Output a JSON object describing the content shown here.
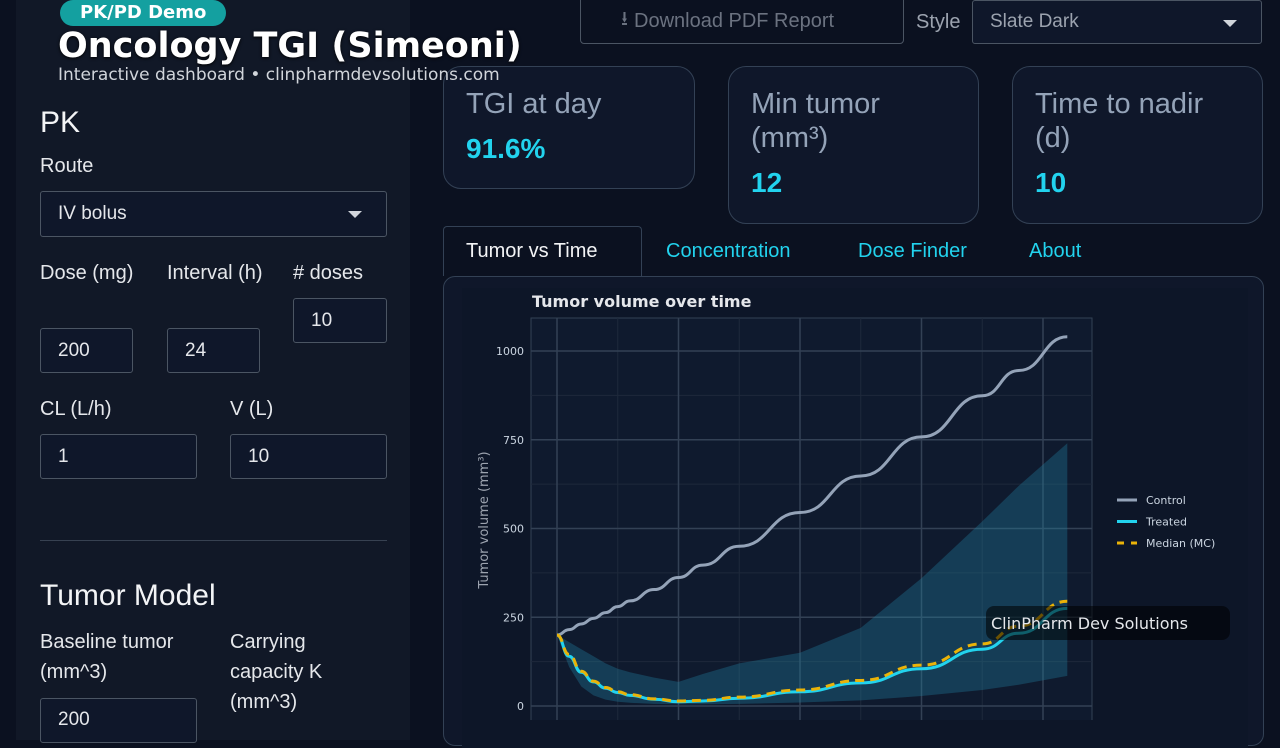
{
  "header": {
    "badge": "PK/PD Demo",
    "title": "Oncology TGI (Simeoni)",
    "subtitle": "Interactive dashboard • clinpharmdevsolutions.com"
  },
  "sidebar": {
    "style_label": "Style",
    "style_value": "Slate Dark",
    "pk_heading": "PK",
    "route_label": "Route",
    "route_value": "IV bolus",
    "dose_label": "Dose (mg)",
    "dose_value": "200",
    "interval_label": "Interval (h)",
    "interval_value": "24",
    "ndoses_label": "# doses",
    "ndoses_value": "10",
    "cl_label": "CL (L/h)",
    "cl_value": "1",
    "v_label": "V (L)",
    "v_value": "10",
    "tumor_heading": "Tumor Model",
    "baseline_label": "Baseline tumor (mm^3)",
    "baseline_value": "200",
    "k_label": "Carrying capacity K (mm^3)"
  },
  "download_label": "Download PDF Report",
  "metrics": [
    {
      "title": "TGI at day",
      "value": "91.6%"
    },
    {
      "title": "Min tumor (mm³)",
      "value": "12"
    },
    {
      "title": "Time to nadir (d)",
      "value": "10"
    }
  ],
  "tabs": [
    "Tumor vs Time",
    "Concentration",
    "Dose Finder",
    "About"
  ],
  "watermark": "ClinPharm Dev Solutions",
  "chart_data": {
    "type": "line",
    "title": "Tumor volume over time",
    "xlabel": "",
    "ylabel": "Tumor volume (mm³)",
    "xlim": [
      -2,
      44
    ],
    "ylim": [
      0,
      1090
    ],
    "yticks": [
      0,
      250,
      500,
      750,
      1000
    ],
    "xgrid": [
      0,
      10,
      20,
      30,
      40
    ],
    "legend_position": "right",
    "x": [
      0,
      1,
      2,
      3,
      4,
      5,
      6,
      8,
      10,
      12,
      15,
      20,
      25,
      30,
      35,
      38,
      42
    ],
    "series": [
      {
        "name": "Control",
        "color": "#94a3b8",
        "values": [
          200,
          215,
          231,
          247,
          263,
          280,
          296,
          328,
          362,
          397,
          450,
          545,
          648,
          758,
          874,
          945,
          1040
        ]
      },
      {
        "name": "Treated",
        "color": "#22d3ee",
        "values": [
          200,
          140,
          95,
          68,
          50,
          38,
          30,
          19,
          12,
          14,
          22,
          40,
          65,
          105,
          160,
          205,
          275
        ]
      },
      {
        "name": "Median (MC)",
        "color": "#eab308",
        "dashed": true,
        "values": [
          200,
          145,
          98,
          70,
          52,
          40,
          32,
          20,
          14,
          16,
          25,
          45,
          72,
          115,
          175,
          225,
          295
        ]
      }
    ],
    "band": {
      "upper": [
        200,
        180,
        160,
        140,
        120,
        105,
        95,
        80,
        68,
        90,
        120,
        150,
        220,
        360,
        520,
        620,
        740
      ],
      "lower": [
        200,
        110,
        55,
        30,
        18,
        12,
        9,
        6,
        5,
        5,
        6,
        10,
        16,
        28,
        45,
        60,
        85
      ]
    }
  },
  "colors": {
    "accent": "#22d3ee",
    "badge": "#14a0a0"
  }
}
